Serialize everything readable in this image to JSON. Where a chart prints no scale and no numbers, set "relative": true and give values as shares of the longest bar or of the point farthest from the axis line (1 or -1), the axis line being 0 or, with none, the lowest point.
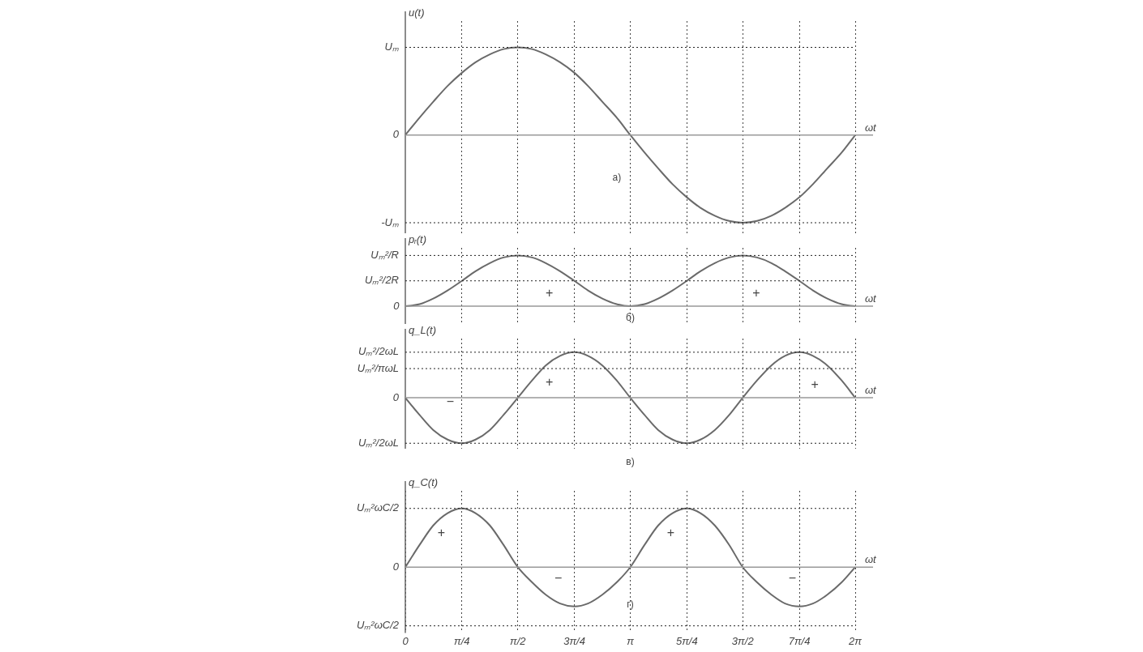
{
  "chart_data": [
    {
      "type": "line",
      "relative": true,
      "ylabel": "u(t)",
      "xlabel": "ωt",
      "annotations": [
        "а)"
      ],
      "color": "#6a6a6a",
      "grid": "x",
      "line_style": "solid",
      "marker": "none",
      "legend": false,
      "tick_labels": false,
      "xlim": [
        0,
        6.28
      ],
      "xticks": [
        {
          "value": 0.79,
          "label": null
        },
        {
          "value": 1.57,
          "label": null
        },
        {
          "value": 2.36,
          "label": null
        },
        {
          "value": 3.14,
          "label": null
        },
        {
          "value": 3.93,
          "label": null
        },
        {
          "value": 4.71,
          "label": null
        },
        {
          "value": 5.5,
          "label": null
        },
        {
          "value": 6.28,
          "label": null
        }
      ],
      "ref_lines": [
        {
          "axis": "y",
          "value": 1,
          "label": "Uₘ",
          "line_style": "dotted",
          "color": "#222222"
        },
        {
          "axis": "y",
          "value": 0,
          "label": "0",
          "line_style": "solid",
          "color": "#999999"
        },
        {
          "axis": "y",
          "value": -1,
          "label": "-Uₘ",
          "line_style": "dotted",
          "color": "#222222"
        }
      ],
      "x": [
        0,
        0.2,
        0.39,
        0.59,
        0.79,
        0.98,
        1.18,
        1.37,
        1.57,
        1.77,
        1.96,
        2.16,
        2.36,
        2.55,
        2.75,
        2.95,
        3.14,
        3.34,
        3.53,
        3.73,
        3.93,
        4.12,
        4.32,
        4.52,
        4.71,
        4.91,
        5.11,
        5.3,
        5.5,
        5.69,
        5.89,
        6.09,
        6.28
      ],
      "values": [
        0,
        0.2,
        0.38,
        0.56,
        0.71,
        0.83,
        0.92,
        0.98,
        1,
        0.98,
        0.92,
        0.83,
        0.71,
        0.56,
        0.38,
        0.2,
        0,
        -0.2,
        -0.38,
        -0.56,
        -0.71,
        -0.83,
        -0.92,
        -0.98,
        -1,
        -0.98,
        -0.92,
        -0.83,
        -0.71,
        -0.56,
        -0.38,
        -0.2,
        0
      ]
    },
    {
      "type": "line",
      "relative": true,
      "ylabel": "pᵣ(t)",
      "xlabel": "ωt",
      "annotations": [
        "б)",
        "+",
        "+",
        "0"
      ],
      "color": "#6a6a6a",
      "grid": "x",
      "line_style": "solid",
      "marker": "none",
      "legend": false,
      "tick_labels": false,
      "xlim": [
        0,
        6.28
      ],
      "xticks": [
        {
          "value": 0.79,
          "label": null
        },
        {
          "value": 1.57,
          "label": null
        },
        {
          "value": 2.36,
          "label": null
        },
        {
          "value": 3.14,
          "label": null
        },
        {
          "value": 3.93,
          "label": null
        },
        {
          "value": 4.71,
          "label": null
        },
        {
          "value": 5.5,
          "label": null
        },
        {
          "value": 6.28,
          "label": null
        }
      ],
      "ref_lines": [
        {
          "axis": "y",
          "value": 1,
          "label": "Uₘ²/R",
          "line_style": "dotted",
          "color": "#222222"
        },
        {
          "axis": "y",
          "value": 0.5,
          "label": "Uₘ²/2R",
          "line_style": "dotted",
          "color": "#222222"
        }
      ],
      "x": [
        0,
        0.2,
        0.39,
        0.59,
        0.79,
        0.98,
        1.18,
        1.37,
        1.57,
        1.77,
        1.96,
        2.16,
        2.36,
        2.55,
        2.75,
        2.95,
        3.14,
        3.34,
        3.53,
        3.73,
        3.93,
        4.12,
        4.32,
        4.52,
        4.71,
        4.91,
        5.11,
        5.3,
        5.5,
        5.69,
        5.89,
        6.09,
        6.28
      ],
      "values": [
        0,
        0.04,
        0.15,
        0.31,
        0.5,
        0.69,
        0.85,
        0.96,
        1,
        0.96,
        0.85,
        0.69,
        0.5,
        0.31,
        0.15,
        0.04,
        0,
        0.04,
        0.15,
        0.31,
        0.5,
        0.69,
        0.85,
        0.96,
        1,
        0.96,
        0.85,
        0.69,
        0.5,
        0.31,
        0.15,
        0.04,
        0
      ]
    },
    {
      "type": "line",
      "relative": true,
      "ylabel": "q_L(t)",
      "xlabel": "ωt",
      "annotations": [
        "в)",
        "−",
        "+",
        "+"
      ],
      "color": "#6a6a6a",
      "grid": "x",
      "line_style": "solid",
      "marker": "none",
      "legend": false,
      "tick_labels": false,
      "xlim": [
        0,
        6.28
      ],
      "xticks": [
        {
          "value": 0.79,
          "label": null
        },
        {
          "value": 1.57,
          "label": null
        },
        {
          "value": 2.36,
          "label": null
        },
        {
          "value": 3.14,
          "label": null
        },
        {
          "value": 3.93,
          "label": null
        },
        {
          "value": 4.71,
          "label": null
        },
        {
          "value": 5.5,
          "label": null
        },
        {
          "value": 6.28,
          "label": null
        }
      ],
      "ref_lines": [
        {
          "axis": "y",
          "value": 1,
          "label": "Uₘ²/2ωL",
          "line_style": "dotted",
          "color": "#222222"
        },
        {
          "axis": "y",
          "value": 0.64,
          "label": "Uₘ²/πωL",
          "line_style": "dotted",
          "color": "#222222"
        },
        {
          "axis": "y",
          "value": 0,
          "label": "0",
          "line_style": "solid",
          "color": "#999999"
        },
        {
          "axis": "y",
          "value": -1,
          "label": "Uₘ²/2ωL",
          "line_style": "dotted",
          "color": "#222222"
        }
      ],
      "x": [
        0,
        0.2,
        0.39,
        0.59,
        0.79,
        0.98,
        1.18,
        1.37,
        1.57,
        1.77,
        1.96,
        2.16,
        2.36,
        2.55,
        2.75,
        2.95,
        3.14,
        3.34,
        3.53,
        3.73,
        3.93,
        4.12,
        4.32,
        4.52,
        4.71,
        4.91,
        5.11,
        5.3,
        5.5,
        5.69,
        5.89,
        6.09,
        6.28
      ],
      "values": [
        0,
        -0.38,
        -0.71,
        -0.92,
        -1,
        -0.92,
        -0.71,
        -0.38,
        0,
        0.38,
        0.71,
        0.92,
        1,
        0.92,
        0.71,
        0.38,
        0,
        -0.38,
        -0.71,
        -0.92,
        -1,
        -0.92,
        -0.71,
        -0.38,
        0,
        0.38,
        0.71,
        0.92,
        1,
        0.92,
        0.71,
        0.38,
        0
      ]
    },
    {
      "type": "line",
      "relative": true,
      "ylabel": "q_C(t)",
      "xlabel": "ωt",
      "annotations": [
        "г)",
        "+",
        "+",
        "−",
        "−"
      ],
      "color": "#6a6a6a",
      "grid": "x",
      "line_style": "solid",
      "marker": "none",
      "legend": false,
      "tick_labels": "x",
      "xlim": [
        0,
        6.28
      ],
      "xticks": [
        0,
        {
          "value": 0.79,
          "label": "π/4"
        },
        {
          "value": 1.57,
          "label": "π/2"
        },
        {
          "value": 2.36,
          "label": "3π/4"
        },
        {
          "value": 3.14,
          "label": "π"
        },
        {
          "value": 3.93,
          "label": "5π/4"
        },
        {
          "value": 4.71,
          "label": "3π/2"
        },
        {
          "value": 5.5,
          "label": "7π/4"
        },
        {
          "value": 6.28,
          "label": "2π"
        }
      ],
      "ref_lines": [
        {
          "axis": "y",
          "value": 1,
          "label": "Uₘ²ωC/2",
          "line_style": "dotted",
          "color": "#222222"
        },
        {
          "axis": "y",
          "value": 0,
          "label": "0",
          "line_style": "solid",
          "color": "#999999"
        },
        {
          "axis": "y",
          "value": -1,
          "label": "Uₘ²ωC/2",
          "line_style": "dotted",
          "color": "#222222"
        }
      ],
      "x": [
        0,
        0.2,
        0.39,
        0.59,
        0.79,
        0.98,
        1.18,
        1.37,
        1.57,
        1.77,
        1.96,
        2.16,
        2.36,
        2.55,
        2.75,
        2.95,
        3.14,
        3.34,
        3.53,
        3.73,
        3.93,
        4.12,
        4.32,
        4.52,
        4.71,
        4.91,
        5.11,
        5.3,
        5.5,
        5.69,
        5.89,
        6.09,
        6.28
      ],
      "values": [
        0,
        0.38,
        0.71,
        0.92,
        1,
        0.92,
        0.71,
        0.38,
        0,
        -0.26,
        -0.47,
        -0.62,
        -0.67,
        -0.62,
        -0.47,
        -0.26,
        0,
        0.38,
        0.71,
        0.92,
        1,
        0.92,
        0.71,
        0.38,
        0,
        -0.26,
        -0.47,
        -0.62,
        -0.67,
        -0.62,
        -0.47,
        -0.26,
        0
      ]
    }
  ]
}
